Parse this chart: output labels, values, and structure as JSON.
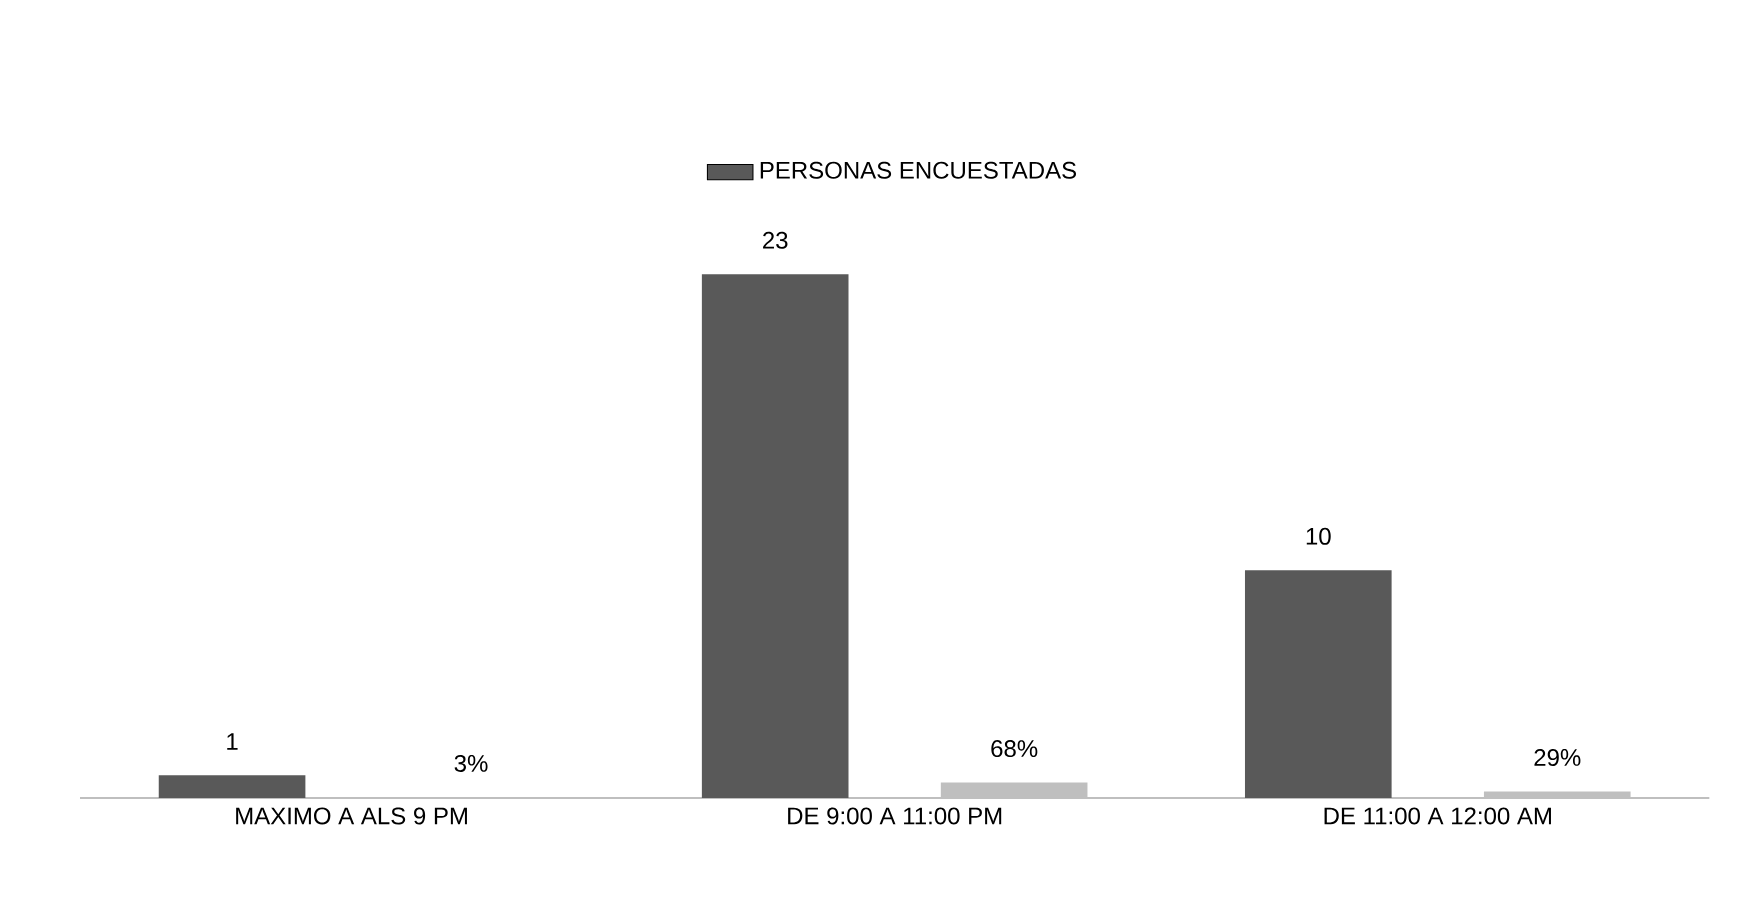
{
  "chart_data": {
    "type": "bar",
    "categories": [
      "MAXIMO A ALS 9 PM",
      "DE 9:00 A 11:00 PM",
      "DE 11:00 A 12:00 AM"
    ],
    "series": [
      {
        "name": "PERSONAS ENCUESTADAS",
        "color": "#595959",
        "values": [
          1,
          23,
          10
        ],
        "value_labels": [
          "1",
          "23",
          "10"
        ]
      },
      {
        "color": "#bfbfbf",
        "values": [
          0.03,
          0.68,
          0.29
        ],
        "value_labels": [
          "3%",
          "68%",
          "29%"
        ]
      }
    ],
    "legend": "top"
  }
}
